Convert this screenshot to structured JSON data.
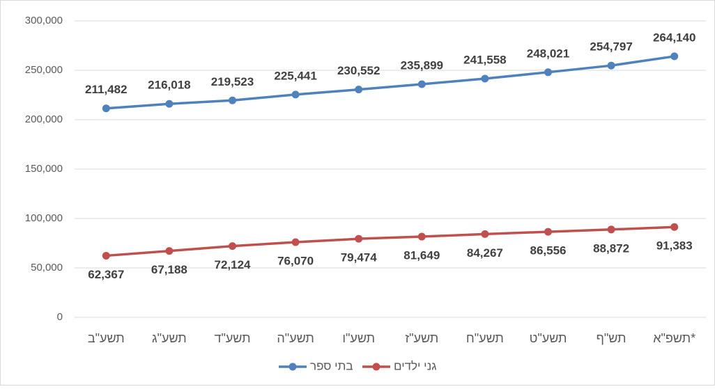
{
  "chart_data": {
    "type": "line",
    "categories": [
      "תשע\"ב",
      "תשע\"ג",
      "תשע\"ד",
      "תשע\"ה",
      "תשע\"ו",
      "תשע\"ז",
      "תשע\"ח",
      "תשע\"ט",
      "תש\"ף",
      "תשפ\"א*"
    ],
    "series": [
      {
        "name": "בתי ספר",
        "color": "#4f81bd",
        "values": [
          211482,
          216018,
          219523,
          225441,
          230552,
          235899,
          241558,
          248021,
          254797,
          264140
        ],
        "value_labels": [
          "211,482",
          "216,018",
          "219,523",
          "225,441",
          "230,552",
          "235,899",
          "241,558",
          "248,021",
          "254,797",
          "264,140"
        ]
      },
      {
        "name": "גני ילדים",
        "color": "#c0504d",
        "values": [
          62367,
          67188,
          72124,
          76070,
          79474,
          81649,
          84267,
          86556,
          88872,
          91383
        ],
        "value_labels": [
          "62,367",
          "67,188",
          "72,124",
          "76,070",
          "79,474",
          "81,649",
          "84,267",
          "86,556",
          "88,872",
          "91,383"
        ]
      }
    ],
    "ylim": [
      0,
      300000
    ],
    "yticks": [
      0,
      {
        "value": 50000,
        "label": "50,000"
      },
      {
        "value": 100000,
        "label": "100,000"
      },
      {
        "value": 150000,
        "label": "150,000"
      },
      {
        "value": 200000,
        "label": "200,000"
      },
      {
        "value": 250000,
        "label": "250,000"
      },
      {
        "value": 300000,
        "label": "300,000"
      }
    ],
    "grid": true,
    "legend": "bottom"
  }
}
